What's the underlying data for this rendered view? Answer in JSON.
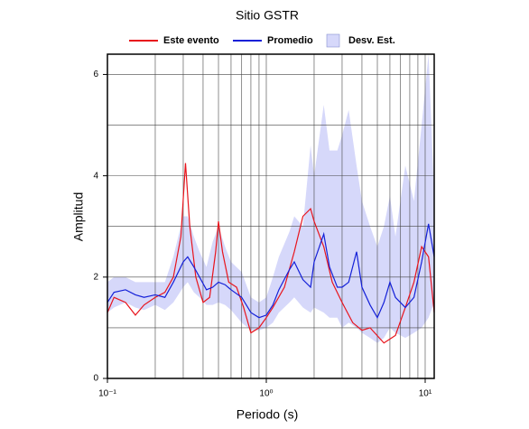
{
  "chart_data": {
    "type": "line",
    "title": "Sitio GSTR",
    "xlabel": "Periodo (s)",
    "ylabel": "Amplitud",
    "xscale": "log",
    "xlim": [
      0.1,
      11.4
    ],
    "ylim": [
      0,
      6.4
    ],
    "xticks": [
      {
        "value": 0.1,
        "label": "10⁻¹"
      },
      {
        "value": 1,
        "label": "10⁰"
      },
      {
        "value": 10,
        "label": "10¹"
      }
    ],
    "x_grid": [
      0.2,
      0.3,
      0.4,
      0.5,
      0.6,
      0.7,
      0.8,
      0.9,
      2,
      3,
      4,
      5,
      6,
      7,
      8,
      9
    ],
    "yticks": [
      0,
      2,
      4,
      6
    ],
    "y_grid": [
      1,
      3,
      5
    ],
    "grid": true,
    "series": [
      {
        "name": "Este evento",
        "type": "line",
        "color": "#e8141c",
        "x": [
          0.1,
          0.11,
          0.13,
          0.15,
          0.17,
          0.2,
          0.23,
          0.26,
          0.29,
          0.31,
          0.33,
          0.36,
          0.4,
          0.44,
          0.48,
          0.5,
          0.53,
          0.58,
          0.65,
          0.72,
          0.8,
          0.9,
          1.0,
          1.1,
          1.3,
          1.5,
          1.7,
          1.9,
          2.0,
          2.3,
          2.6,
          3.0,
          3.5,
          4.0,
          4.5,
          5.5,
          6.5,
          7.5,
          8.5,
          9.5,
          10.5,
          11.4
        ],
        "values": [
          1.3,
          1.6,
          1.5,
          1.25,
          1.45,
          1.6,
          1.7,
          2.0,
          2.8,
          4.25,
          3.0,
          2.0,
          1.5,
          1.6,
          2.5,
          3.1,
          2.5,
          1.9,
          1.8,
          1.4,
          0.9,
          1.0,
          1.2,
          1.4,
          1.8,
          2.5,
          3.2,
          3.35,
          3.1,
          2.6,
          1.9,
          1.5,
          1.1,
          0.95,
          1.0,
          0.7,
          0.85,
          1.4,
          1.9,
          2.6,
          2.4,
          1.3
        ]
      },
      {
        "name": "Promedio",
        "type": "line",
        "color": "#1420d8",
        "x": [
          0.1,
          0.11,
          0.13,
          0.15,
          0.17,
          0.2,
          0.23,
          0.26,
          0.3,
          0.32,
          0.35,
          0.38,
          0.42,
          0.46,
          0.5,
          0.55,
          0.6,
          0.7,
          0.8,
          0.9,
          1.0,
          1.1,
          1.2,
          1.4,
          1.5,
          1.7,
          1.9,
          2.0,
          2.3,
          2.5,
          2.8,
          3.0,
          3.3,
          3.7,
          4.0,
          4.5,
          5,
          5.5,
          6,
          6.5,
          7.5,
          8.5,
          9.5,
          10.5,
          11.4
        ],
        "values": [
          1.5,
          1.7,
          1.75,
          1.65,
          1.6,
          1.65,
          1.6,
          1.9,
          2.3,
          2.4,
          2.2,
          2.0,
          1.75,
          1.8,
          1.9,
          1.85,
          1.75,
          1.6,
          1.3,
          1.2,
          1.25,
          1.45,
          1.75,
          2.15,
          2.3,
          1.95,
          1.8,
          2.3,
          2.85,
          2.2,
          1.8,
          1.8,
          1.9,
          2.5,
          1.8,
          1.45,
          1.2,
          1.5,
          1.9,
          1.6,
          1.4,
          1.6,
          2.3,
          3.05,
          2.4
        ]
      },
      {
        "name": "Desv. Est.",
        "type": "band",
        "color": "#d6d8fa",
        "x": [
          0.1,
          0.11,
          0.13,
          0.15,
          0.17,
          0.2,
          0.23,
          0.26,
          0.3,
          0.32,
          0.35,
          0.38,
          0.42,
          0.46,
          0.5,
          0.55,
          0.6,
          0.7,
          0.8,
          0.9,
          1.0,
          1.1,
          1.2,
          1.4,
          1.5,
          1.7,
          1.9,
          2.0,
          2.3,
          2.5,
          2.8,
          3.0,
          3.3,
          3.7,
          4.0,
          4.5,
          5,
          5.5,
          6,
          6.5,
          7.5,
          8.5,
          9.5,
          10.5,
          11.4
        ],
        "upper": [
          1.9,
          2.0,
          2.0,
          1.9,
          1.9,
          1.9,
          1.9,
          2.4,
          3.2,
          3.2,
          2.8,
          2.5,
          2.2,
          2.7,
          3.0,
          2.6,
          2.3,
          2.1,
          1.6,
          1.5,
          1.6,
          2.0,
          2.4,
          2.9,
          3.2,
          3.0,
          4.6,
          4.0,
          5.4,
          4.5,
          4.5,
          4.8,
          5.3,
          4.2,
          3.5,
          3.0,
          2.6,
          3.0,
          3.6,
          2.8,
          4.2,
          3.5,
          5.0,
          6.4,
          3.6
        ],
        "lower": [
          1.3,
          1.4,
          1.5,
          1.4,
          1.35,
          1.45,
          1.35,
          1.5,
          1.8,
          1.9,
          1.7,
          1.6,
          1.45,
          1.45,
          1.5,
          1.45,
          1.35,
          1.1,
          0.95,
          0.95,
          1.0,
          1.1,
          1.3,
          1.5,
          1.6,
          1.4,
          1.3,
          1.4,
          1.3,
          1.2,
          1.2,
          1.0,
          1.1,
          1.0,
          0.9,
          0.8,
          0.7,
          0.8,
          1.0,
          0.9,
          0.8,
          0.9,
          1.0,
          1.2,
          1.5
        ]
      }
    ]
  }
}
